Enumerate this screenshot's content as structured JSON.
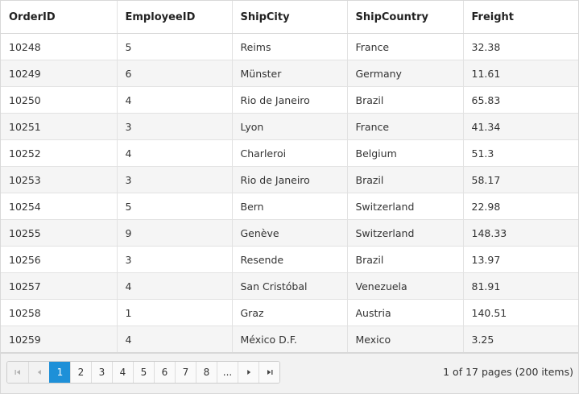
{
  "grid": {
    "columns": [
      "OrderID",
      "EmployeeID",
      "ShipCity",
      "ShipCountry",
      "Freight"
    ],
    "rows": [
      [
        "10248",
        "5",
        "Reims",
        "France",
        "32.38"
      ],
      [
        "10249",
        "6",
        "Münster",
        "Germany",
        "11.61"
      ],
      [
        "10250",
        "4",
        "Rio de Janeiro",
        "Brazil",
        "65.83"
      ],
      [
        "10251",
        "3",
        "Lyon",
        "France",
        "41.34"
      ],
      [
        "10252",
        "4",
        "Charleroi",
        "Belgium",
        "51.3"
      ],
      [
        "10253",
        "3",
        "Rio de Janeiro",
        "Brazil",
        "58.17"
      ],
      [
        "10254",
        "5",
        "Bern",
        "Switzerland",
        "22.98"
      ],
      [
        "10255",
        "9",
        "Genève",
        "Switzerland",
        "148.33"
      ],
      [
        "10256",
        "3",
        "Resende",
        "Brazil",
        "13.97"
      ],
      [
        "10257",
        "4",
        "San Cristóbal",
        "Venezuela",
        "81.91"
      ],
      [
        "10258",
        "1",
        "Graz",
        "Austria",
        "140.51"
      ],
      [
        "10259",
        "4",
        "México D.F.",
        "Mexico",
        "3.25"
      ]
    ]
  },
  "pager": {
    "pages": [
      "1",
      "2",
      "3",
      "4",
      "5",
      "6",
      "7",
      "8",
      "..."
    ],
    "current_page": "1",
    "info": "1 of 17 pages (200 items)",
    "icons": {
      "first": "first-page-icon",
      "prev": "previous-page-icon",
      "next": "next-page-icon",
      "last": "last-page-icon"
    }
  },
  "colors": {
    "accent": "#1e90d8",
    "row_alt": "#f5f5f5",
    "border": "#d8d8d8",
    "pager_bg": "#f2f2f2"
  }
}
